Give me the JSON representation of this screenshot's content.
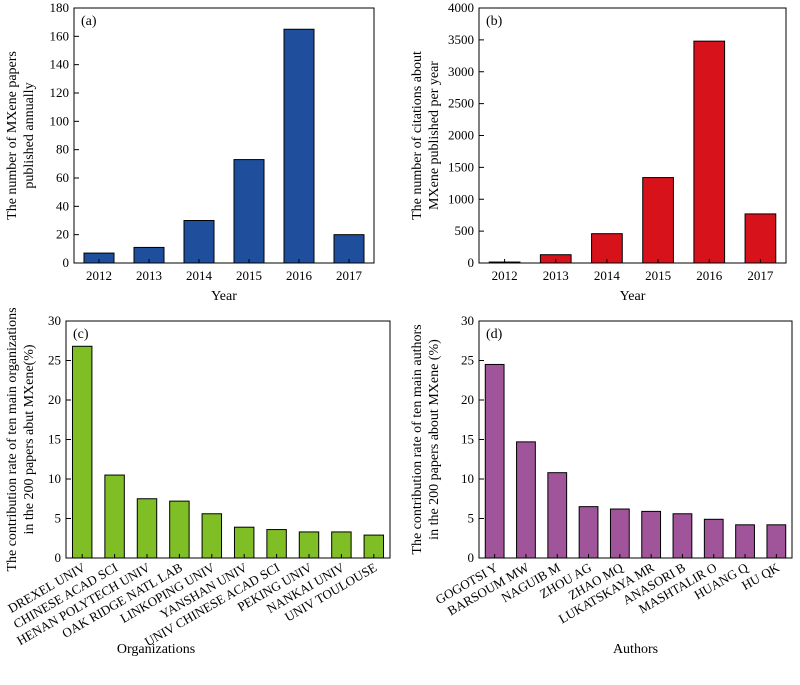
{
  "chart_data": [
    {
      "type": "bar",
      "panel_label": "(a)",
      "categories": [
        "2012",
        "2013",
        "2014",
        "2015",
        "2016",
        "2017"
      ],
      "values": [
        7,
        11,
        30,
        73,
        165,
        20
      ],
      "xlabel": "Year",
      "ylabel": [
        "The number of MXene papers",
        "published annually"
      ],
      "ylim": [
        0,
        180
      ],
      "yticks": [
        0,
        20,
        40,
        60,
        80,
        100,
        120,
        140,
        160,
        180
      ],
      "bar_color": "#1f4e9c",
      "rotate_xticks": false
    },
    {
      "type": "bar",
      "panel_label": "(b)",
      "categories": [
        "2012",
        "2013",
        "2014",
        "2015",
        "2016",
        "2017"
      ],
      "values": [
        15,
        130,
        460,
        1340,
        3480,
        770
      ],
      "xlabel": "Year",
      "ylabel": [
        "The number of citations about",
        "MXene published per year"
      ],
      "ylim": [
        0,
        4000
      ],
      "yticks": [
        0,
        500,
        1000,
        1500,
        2000,
        2500,
        3000,
        3500,
        4000
      ],
      "bar_color": "#d7121b",
      "rotate_xticks": false
    },
    {
      "type": "bar",
      "panel_label": "(c)",
      "categories": [
        "DREXEL UNIV",
        "CHINESE ACAD SCI",
        "HENAN POLYTECH UNIV",
        "OAK RIDGE NATL LAB",
        "LINKOPING UNIV",
        "YANSHAN UNIV",
        "UNIV CHINESE ACAD SCI",
        "PEKING UNIV",
        "NANKAI UNIV",
        "UNIV TOULOUSE"
      ],
      "values": [
        26.8,
        10.5,
        7.5,
        7.2,
        5.6,
        3.9,
        3.6,
        3.3,
        3.3,
        2.9
      ],
      "xlabel": "Organizations",
      "ylabel": [
        "The contribution rate of ten main organizations",
        "in the 200 papers abut MXene(%)"
      ],
      "ylim": [
        0,
        30
      ],
      "yticks": [
        0,
        5,
        10,
        15,
        20,
        25,
        30
      ],
      "bar_color": "#7fbe25",
      "rotate_xticks": true
    },
    {
      "type": "bar",
      "panel_label": "(d)",
      "categories": [
        "GOGOTSI Y",
        "BARSOUM MW",
        "NAGUIB M",
        "ZHOU AG",
        "ZHAO MQ",
        "LUKATSKAYA MR",
        "ANASORI B",
        "MASHTALIR O",
        "HUANG Q",
        "HU QK"
      ],
      "values": [
        24.5,
        14.7,
        10.8,
        6.5,
        6.2,
        5.9,
        5.6,
        4.9,
        4.2,
        4.2
      ],
      "xlabel": "Authors",
      "ylabel": [
        "The contribution rate of ten main authors",
        "in the 200 papers about MXene (%)"
      ],
      "ylim": [
        0,
        30
      ],
      "yticks": [
        0,
        5,
        10,
        15,
        20,
        25,
        30
      ],
      "bar_color": "#a0559a",
      "rotate_xticks": true
    }
  ]
}
